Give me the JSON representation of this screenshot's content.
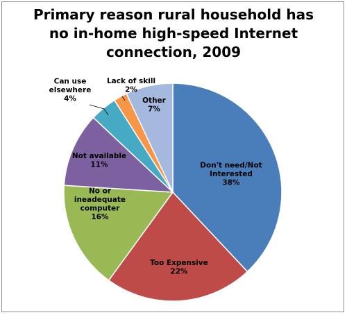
{
  "chart_data": {
    "type": "pie",
    "title": [
      "Primary reason rural household has",
      "no in-home high-speed Internet",
      "connection, 2009"
    ],
    "slices": [
      {
        "label": [
          "Don't need/Not",
          "Interested"
        ],
        "pct_text": "38%",
        "value": 38,
        "color": "#4a7ebb",
        "label_color": "#000000"
      },
      {
        "label": [
          "Too Expensive"
        ],
        "pct_text": "22%",
        "value": 22,
        "color": "#be4b48",
        "label_color": "#000000"
      },
      {
        "label": [
          "No or",
          "ineadequate",
          "computer"
        ],
        "pct_text": "16%",
        "value": 16,
        "color": "#98b954",
        "label_color": "#000000"
      },
      {
        "label": [
          "Not available"
        ],
        "pct_text": "11%",
        "value": 11,
        "color": "#7d60a0",
        "label_color": "#000000"
      },
      {
        "label": [
          "Can use",
          "elsewhere"
        ],
        "pct_text": "4%",
        "value": 4,
        "color": "#46aac5",
        "label_color": "#000000"
      },
      {
        "label": [
          "Lack of skill"
        ],
        "pct_text": "2%",
        "value": 2,
        "color": "#f79646",
        "label_color": "#000000"
      },
      {
        "label": [
          "Other"
        ],
        "pct_text": "7%",
        "value": 7,
        "color": "#a5b8de",
        "label_color": "#000000"
      }
    ],
    "legend": "none"
  }
}
